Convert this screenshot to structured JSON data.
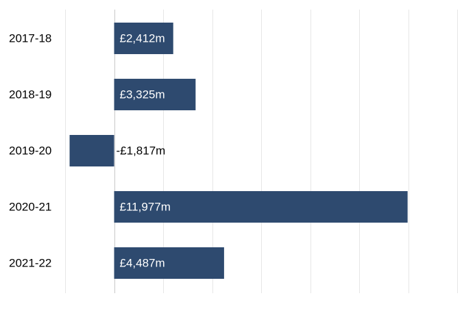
{
  "chart_data": {
    "type": "bar",
    "orientation": "horizontal",
    "categories": [
      "2017-18",
      "2018-19",
      "2019-20",
      "2020-21",
      "2021-22"
    ],
    "values": [
      2412,
      3325,
      -1817,
      11977,
      4487
    ],
    "value_labels": [
      "£2,412m",
      "£3,325m",
      "-£1,817m",
      "£11,977m",
      "£4,487m"
    ],
    "xlim": [
      -2000,
      14000
    ],
    "grid_step": 2000,
    "grid": true,
    "legend": "none",
    "colors": {
      "bar": "#2e4a6f",
      "grid": "#e6e6e6",
      "zero_line": "#c8c8c8",
      "label_inside": "#ffffff",
      "label_outside": "#000000",
      "category_text": "#000000"
    }
  }
}
